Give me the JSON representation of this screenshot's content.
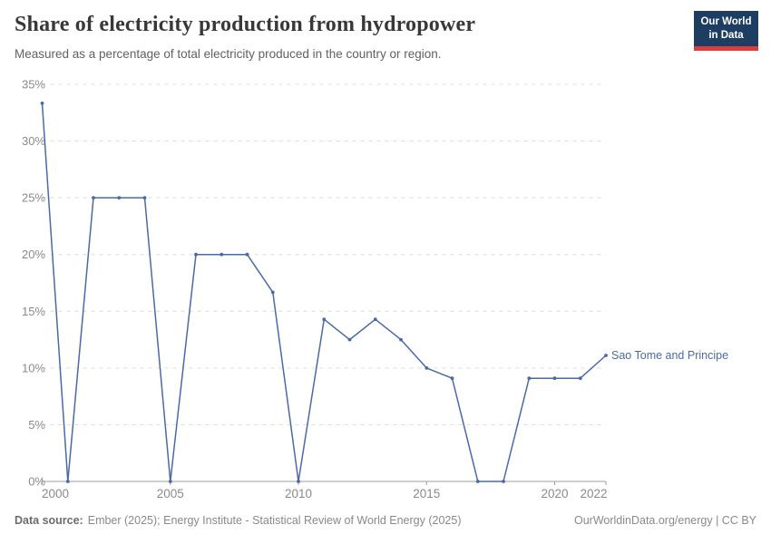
{
  "header": {
    "title": "Share of electricity production from hydropower",
    "subtitle": "Measured as a percentage of total electricity produced in the country or region.",
    "logo": {
      "line1": "Our World",
      "line2": "in Data",
      "bg_color": "#1d3d63",
      "accent_color": "#d93d3e"
    }
  },
  "chart_data": {
    "type": "line",
    "title": "Share of electricity production from hydropower",
    "xlabel": "",
    "ylabel": "",
    "xlim": [
      2000,
      2022
    ],
    "ylim": [
      0,
      35
    ],
    "grid": "horizontal-dashed",
    "legend_position": "end-of-line",
    "x": [
      2000,
      2001,
      2002,
      2003,
      2004,
      2005,
      2006,
      2007,
      2008,
      2009,
      2010,
      2011,
      2012,
      2013,
      2014,
      2015,
      2016,
      2017,
      2018,
      2019,
      2020,
      2021,
      2022
    ],
    "series": [
      {
        "name": "Sao Tome and Principe",
        "color": "#4a6aa5",
        "values": [
          33.33,
          0,
          25,
          25,
          25,
          0,
          20,
          20,
          20,
          16.67,
          0,
          14.29,
          12.5,
          14.29,
          12.5,
          10,
          9.09,
          0,
          0,
          9.09,
          9.09,
          9.09,
          11.11
        ]
      }
    ],
    "y_ticks": [
      {
        "value": 0,
        "label": "0%"
      },
      {
        "value": 5,
        "label": "5%"
      },
      {
        "value": 10,
        "label": "10%"
      },
      {
        "value": 15,
        "label": "15%"
      },
      {
        "value": 20,
        "label": "20%"
      },
      {
        "value": 25,
        "label": "25%"
      },
      {
        "value": 30,
        "label": "30%"
      },
      {
        "value": 35,
        "label": "35%"
      }
    ],
    "x_ticks": [
      {
        "year": 2000,
        "label": "2000",
        "anchor": "start"
      },
      {
        "year": 2005,
        "label": "2005",
        "anchor": "middle"
      },
      {
        "year": 2010,
        "label": "2010",
        "anchor": "middle"
      },
      {
        "year": 2015,
        "label": "2015",
        "anchor": "middle"
      },
      {
        "year": 2020,
        "label": "2020",
        "anchor": "middle"
      },
      {
        "year": 2022,
        "label": "2022",
        "anchor": "end"
      }
    ]
  },
  "footer": {
    "datasource_label": "Data source:",
    "datasource_text": "Ember (2025); Energy Institute - Statistical Review of World Energy (2025)",
    "credit": "OurWorldinData.org/energy | CC BY"
  }
}
